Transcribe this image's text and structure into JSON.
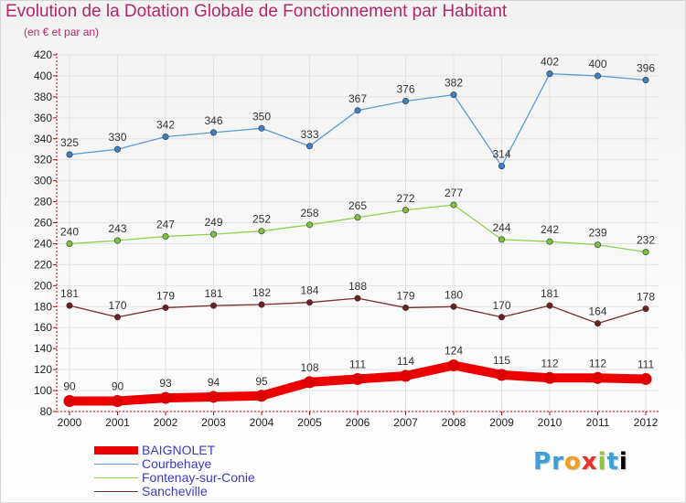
{
  "title": "Evolution de la Dotation Globale de Fonctionnement par Habitant",
  "subtitle": "(en € et par an)",
  "logo_text": "Proxiti",
  "colors": {
    "title": "#b3266a",
    "axis": "#c00000",
    "grid": "#e2e2e2",
    "label_text": "#333333",
    "legend_text": "#3b3bbf"
  },
  "chart_data": {
    "type": "line",
    "title": "Evolution de la Dotation Globale de Fonctionnement par Habitant",
    "subtitle": "(en € et par an)",
    "xlabel": "",
    "ylabel": "",
    "ylim": [
      80,
      420
    ],
    "ytick_step": 20,
    "grid": true,
    "x": [
      "2000",
      "2001",
      "2002",
      "2003",
      "2004",
      "2005",
      "2006",
      "2007",
      "2008",
      "2009",
      "2010",
      "2011",
      "2012"
    ],
    "series": [
      {
        "name": "BAIGNOLET",
        "color": "#ee0000",
        "point_color": "#dd0000",
        "thick": true,
        "values": [
          90,
          90,
          93,
          94,
          95,
          108,
          111,
          114,
          124,
          115,
          112,
          112,
          111
        ]
      },
      {
        "name": "Courbehaye",
        "color": "#5b9bd5",
        "point_color": "#3d7fc4",
        "thick": false,
        "values": [
          325,
          330,
          342,
          346,
          350,
          333,
          367,
          376,
          382,
          314,
          402,
          400,
          396
        ]
      },
      {
        "name": "Fontenay-sur-Conie",
        "color": "#92d050",
        "point_color": "#7cc240",
        "thick": false,
        "values": [
          240,
          243,
          247,
          249,
          252,
          258,
          265,
          272,
          277,
          244,
          242,
          239,
          232
        ]
      },
      {
        "name": "Sancheville",
        "color": "#7b2c2c",
        "point_color": "#6b1f1f",
        "thick": false,
        "values": [
          181,
          170,
          179,
          181,
          182,
          184,
          188,
          179,
          180,
          170,
          181,
          164,
          178
        ]
      }
    ],
    "legend": "bottom-left"
  }
}
